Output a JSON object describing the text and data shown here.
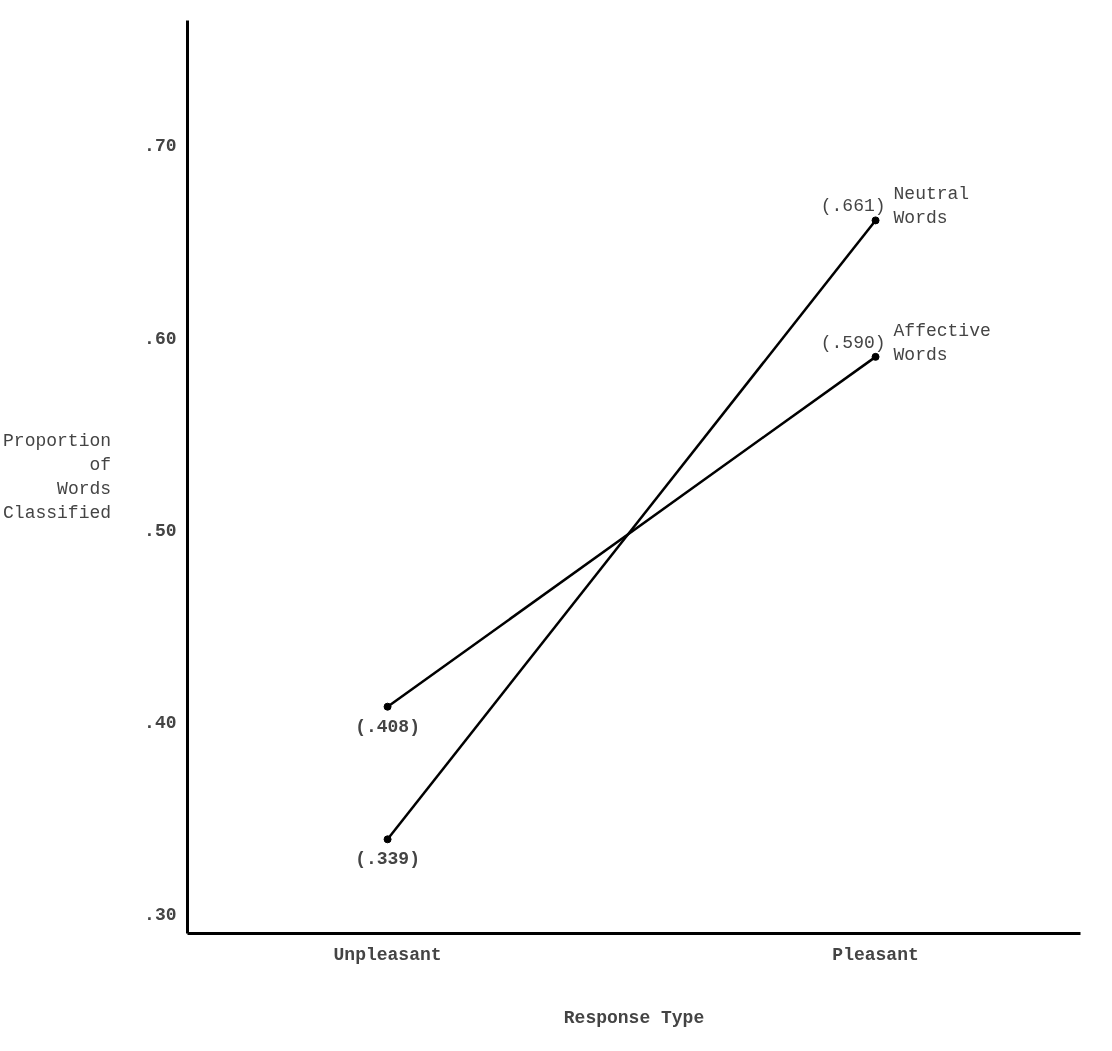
{
  "chart_data": {
    "type": "line",
    "xlabel": "Response Type",
    "ylabel": "Proportion of Words Classified",
    "categories": [
      "Unpleasant",
      "Pleasant"
    ],
    "series": [
      {
        "name": "Neutral Words",
        "color": "#000000",
        "values": [
          0.339,
          0.661
        ],
        "value_labels": [
          "(.339)",
          "(.661)"
        ]
      },
      {
        "name": "Affective Words",
        "color": "#000000",
        "values": [
          0.408,
          0.59
        ],
        "value_labels": [
          "(.408)",
          "(.590)"
        ]
      }
    ],
    "ylim": [
      0.29,
      0.765
    ],
    "yticks": [
      {
        "value": 0.3,
        "label": ".30"
      },
      {
        "value": 0.4,
        "label": ".40"
      },
      {
        "value": 0.5,
        "label": ".50"
      },
      {
        "value": 0.6,
        "label": ".60"
      },
      {
        "value": 0.7,
        "label": ".70"
      }
    ],
    "grid": false,
    "legend": false,
    "marker": "circle",
    "line_style": "solid"
  }
}
